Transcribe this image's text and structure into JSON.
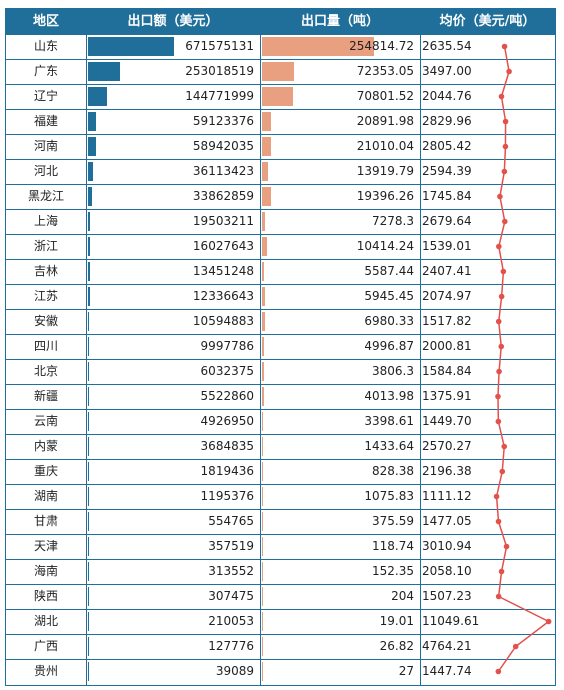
{
  "headers": {
    "region": "地区",
    "amount": "出口额（美元）",
    "volume": "出口量（吨）",
    "price": "均价（美元/吨）"
  },
  "colors": {
    "header_bg": "#1f6f9a",
    "amount_bar": "#1f6f9a",
    "volume_bar": "#e9a080",
    "price_line": "#e2514c"
  },
  "chart_data": {
    "type": "table",
    "columns": [
      "地区",
      "出口额（美元）",
      "出口量（吨）",
      "均价（美元/吨）"
    ],
    "rows": [
      {
        "region": "山东",
        "amount": "671575131",
        "volume": "254814.72",
        "price": "2635.54"
      },
      {
        "region": "广东",
        "amount": "253018519",
        "volume": "72353.05",
        "price": "3497.00"
      },
      {
        "region": "辽宁",
        "amount": "144771999",
        "volume": "70801.52",
        "price": "2044.76"
      },
      {
        "region": "福建",
        "amount": "59123376",
        "volume": "20891.98",
        "price": "2829.96"
      },
      {
        "region": "河南",
        "amount": "58942035",
        "volume": "21010.04",
        "price": "2805.42"
      },
      {
        "region": "河北",
        "amount": "36113423",
        "volume": "13919.79",
        "price": "2594.39"
      },
      {
        "region": "黑龙江",
        "amount": "33862859",
        "volume": "19396.26",
        "price": "1745.84"
      },
      {
        "region": "上海",
        "amount": "19503211",
        "volume": "7278.3",
        "price": "2679.64"
      },
      {
        "region": "浙江",
        "amount": "16027643",
        "volume": "10414.24",
        "price": "1539.01"
      },
      {
        "region": "吉林",
        "amount": "13451248",
        "volume": "5587.44",
        "price": "2407.41"
      },
      {
        "region": "江苏",
        "amount": "12336643",
        "volume": "5945.45",
        "price": "2074.97"
      },
      {
        "region": "安徽",
        "amount": "10594883",
        "volume": "6980.33",
        "price": "1517.82"
      },
      {
        "region": "四川",
        "amount": "9997786",
        "volume": "4996.87",
        "price": "2000.81"
      },
      {
        "region": "北京",
        "amount": "6032375",
        "volume": "3806.3",
        "price": "1584.84"
      },
      {
        "region": "新疆",
        "amount": "5522860",
        "volume": "4013.98",
        "price": "1375.91"
      },
      {
        "region": "云南",
        "amount": "4926950",
        "volume": "3398.61",
        "price": "1449.70"
      },
      {
        "region": "内蒙",
        "amount": "3684835",
        "volume": "1433.64",
        "price": "2570.27"
      },
      {
        "region": "重庆",
        "amount": "1819436",
        "volume": "828.38",
        "price": "2196.38"
      },
      {
        "region": "湖南",
        "amount": "1195376",
        "volume": "1075.83",
        "price": "1111.12"
      },
      {
        "region": "甘肃",
        "amount": "554765",
        "volume": "375.59",
        "price": "1477.05"
      },
      {
        "region": "天津",
        "amount": "357519",
        "volume": "118.74",
        "price": "3010.94"
      },
      {
        "region": "海南",
        "amount": "313552",
        "volume": "152.35",
        "price": "2058.10"
      },
      {
        "region": "陕西",
        "amount": "307475",
        "volume": "204",
        "price": "1507.23"
      },
      {
        "region": "湖北",
        "amount": "210053",
        "volume": "19.01",
        "price": "11049.61"
      },
      {
        "region": "广西",
        "amount": "127776",
        "volume": "26.82",
        "price": "4764.21"
      },
      {
        "region": "贵州",
        "amount": "39089",
        "volume": "27",
        "price": "1447.74"
      }
    ]
  }
}
